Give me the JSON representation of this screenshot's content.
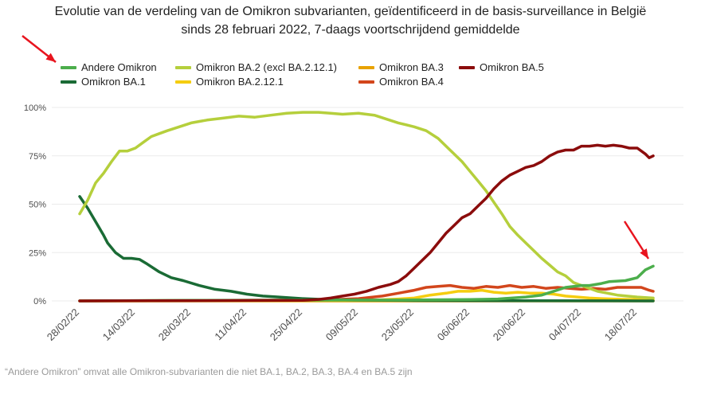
{
  "chart_data": {
    "type": "line",
    "title": "Evolutie van de verdeling van de Omikron subvarianten, geïdentificeerd in de basis-surveillance in België",
    "subtitle": "sinds 28 februari 2022, 7-daags voortschrijdend gemiddelde",
    "xlabel": "",
    "ylabel": "",
    "ylim": [
      0,
      100
    ],
    "y_ticks": [
      0,
      25,
      50,
      75,
      100
    ],
    "y_tick_labels": [
      "0%",
      "25%",
      "50%",
      "75%",
      "100%"
    ],
    "x_range": [
      0,
      144
    ],
    "x_ticks": [
      0,
      14,
      28,
      42,
      56,
      70,
      84,
      98,
      112,
      126,
      140
    ],
    "x_tick_labels": [
      "28/02/22",
      "14/03/22",
      "28/03/22",
      "11/04/22",
      "25/04/22",
      "09/05/22",
      "23/05/22",
      "06/06/22",
      "20/06/22",
      "04/07/22",
      "18/07/22"
    ],
    "grid": true,
    "legend_position": "top",
    "caption": "“Andere Omikron” omvat alle Omikron-subvarianten die niet BA.1, BA.2, BA.3, BA.4 en BA.5 zijn",
    "series": [
      {
        "name": "Andere Omikron",
        "color": "#4cae4c",
        "x": [
          0,
          28,
          56,
          84,
          98,
          105,
          112,
          116,
          119,
          122,
          126,
          128,
          131,
          133,
          137,
          140,
          142,
          144
        ],
        "y": [
          0,
          0.3,
          0.4,
          0.5,
          0.7,
          1,
          2,
          3,
          5,
          7,
          8,
          8,
          9,
          10,
          10.5,
          12,
          16,
          18
        ]
      },
      {
        "name": "Omikron BA.1",
        "color": "#1a6b35",
        "x": [
          0,
          2,
          4,
          6,
          7,
          9,
          11,
          13,
          15,
          17,
          20,
          23,
          26,
          30,
          34,
          38,
          42,
          46,
          50,
          56,
          63,
          70,
          84,
          144
        ],
        "y": [
          54,
          48,
          41,
          34,
          30,
          25,
          22,
          22,
          21.5,
          19,
          15,
          12,
          10.5,
          8,
          6,
          5,
          3.5,
          2.5,
          2,
          1.2,
          0.6,
          0.4,
          0.2,
          0
        ]
      },
      {
        "name": "Omikron BA.2 (excl BA.2.12.1)",
        "color": "#b5cf3c",
        "x": [
          0,
          2,
          4,
          6,
          8,
          10,
          12,
          14,
          16,
          18,
          20,
          22,
          25,
          28,
          32,
          36,
          40,
          44,
          48,
          52,
          56,
          60,
          63,
          66,
          70,
          74,
          77,
          80,
          84,
          87,
          90,
          93,
          96,
          98,
          100,
          102,
          104,
          106,
          108,
          110,
          112,
          114,
          116,
          118,
          120,
          122,
          124,
          126,
          130,
          135,
          140,
          144
        ],
        "y": [
          45,
          52,
          61,
          66,
          72,
          77.5,
          77.5,
          79,
          82,
          85,
          86.5,
          88,
          90,
          92,
          93.5,
          94.5,
          95.5,
          95,
          96,
          97,
          97.5,
          97.5,
          97,
          96.5,
          97,
          96,
          94,
          92,
          90,
          88,
          84,
          78,
          72,
          67,
          62,
          57,
          51,
          45,
          38.5,
          34,
          30,
          26,
          22,
          18.5,
          15,
          13,
          9.5,
          8,
          5,
          3,
          2,
          1.5
        ]
      },
      {
        "name": "Omikron BA.2.12.1",
        "color": "#f5cd10",
        "x": [
          0,
          56,
          75,
          80,
          84,
          88,
          92,
          95,
          98,
          101,
          104,
          107,
          110,
          113,
          116,
          119,
          122,
          125,
          128,
          131,
          134,
          138,
          144
        ],
        "y": [
          0,
          0.2,
          0.5,
          1,
          1.5,
          3,
          4,
          5,
          5,
          5.5,
          4.5,
          4,
          4.5,
          4,
          4,
          3.5,
          2.5,
          2,
          1.5,
          1.2,
          1,
          0.8,
          0.5
        ]
      },
      {
        "name": "Omikron BA.3",
        "color": "#e8a200",
        "x": [
          0,
          144
        ],
        "y": [
          0,
          0
        ]
      },
      {
        "name": "Omikron BA.4",
        "color": "#d2461c",
        "x": [
          0,
          62,
          70,
          76,
          80,
          84,
          87,
          90,
          93,
          96,
          99,
          102,
          105,
          108,
          111,
          114,
          117,
          120,
          123,
          126,
          129,
          132,
          135,
          138,
          141,
          143,
          144
        ],
        "y": [
          0,
          0.5,
          1.2,
          2.5,
          4,
          5.5,
          7,
          7.5,
          8,
          7,
          6.5,
          7.5,
          7,
          8,
          7,
          7.5,
          6.5,
          7,
          6.5,
          6,
          6.5,
          6,
          7,
          7,
          7,
          5.5,
          5
        ]
      },
      {
        "name": "Omikron BA.5",
        "color": "#8b0c0c",
        "x": [
          0,
          56,
          60,
          63,
          66,
          69,
          72,
          75,
          78,
          80,
          82,
          84,
          86,
          88,
          90,
          92,
          94,
          96,
          98,
          100,
          102,
          104,
          106,
          108,
          110,
          112,
          114,
          116,
          118,
          120,
          122,
          124,
          126,
          128,
          130,
          132,
          134,
          136,
          138,
          140,
          142,
          143,
          144
        ],
        "y": [
          0,
          0.3,
          0.8,
          1.5,
          2.5,
          3.5,
          5,
          7,
          8.5,
          10,
          13,
          17,
          21,
          25,
          30,
          35,
          39,
          43,
          45,
          49,
          53,
          58,
          62,
          65,
          67,
          69,
          70,
          72,
          75,
          77,
          78,
          78,
          80,
          80,
          80.5,
          80,
          80.5,
          80,
          79,
          79,
          76,
          74,
          75
        ]
      }
    ],
    "annotations": [
      "red arrow pointing to Andere Omikron legend entry",
      "red arrow pointing to end of Andere Omikron line"
    ]
  }
}
